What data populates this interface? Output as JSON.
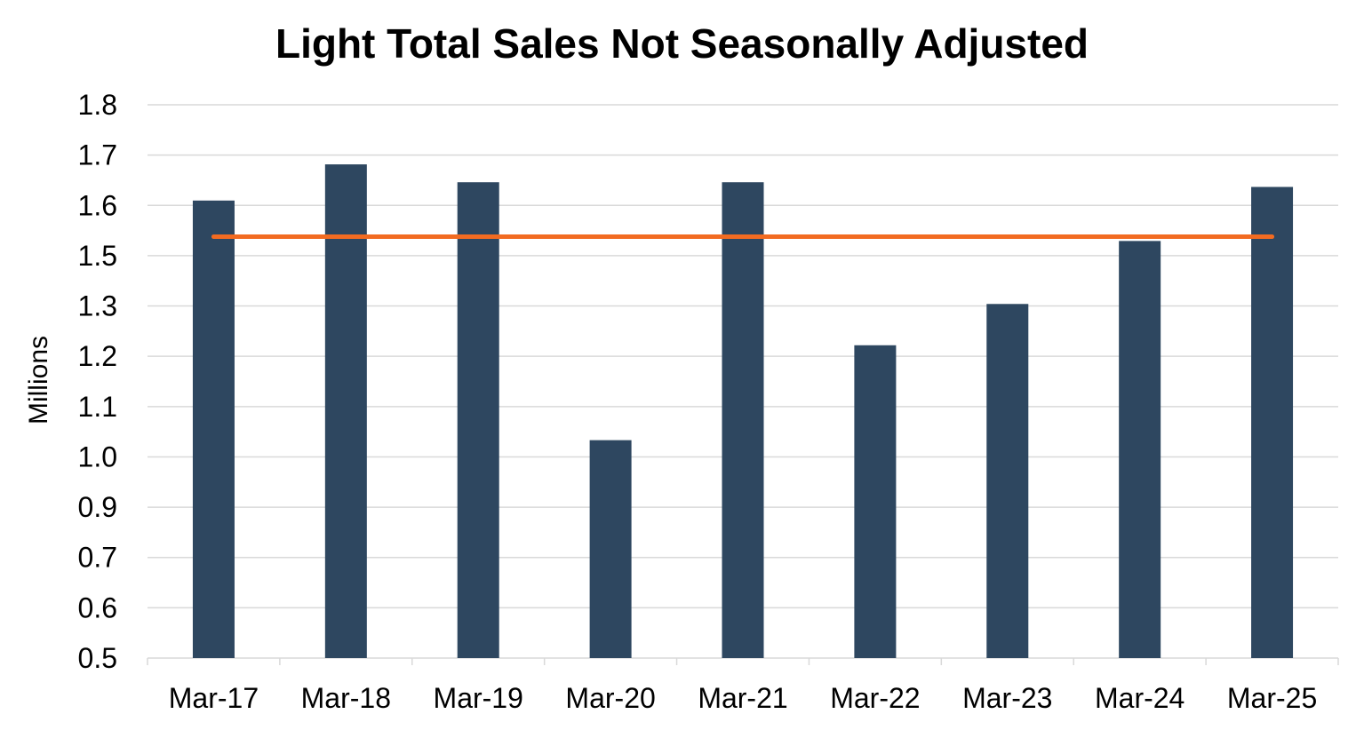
{
  "chart_data": {
    "type": "bar",
    "title": "Light Total Sales Not Seasonally Adjusted",
    "xlabel": "",
    "ylabel": "Millions",
    "categories": [
      "Mar-17",
      "Mar-18",
      "Mar-19",
      "Mar-20",
      "Mar-21",
      "Mar-22",
      "Mar-23",
      "Mar-24",
      "Mar-25"
    ],
    "y_tick_labels": [
      "0.5",
      "0.6",
      "0.7",
      "0.9",
      "1.0",
      "1.1",
      "1.2",
      "1.3",
      "1.5",
      "1.6",
      "1.7",
      "1.8"
    ],
    "series": [
      {
        "values": [
          1.575,
          1.66,
          1.618,
          1.012,
          1.618,
          1.235,
          1.332,
          1.48,
          1.607
        ],
        "color": "#2e4760"
      },
      {
        "type": "line",
        "values": [
          1.49,
          1.49,
          1.49,
          1.49,
          1.49,
          1.49,
          1.49,
          1.49,
          1.49
        ],
        "color": "#f26b21"
      }
    ],
    "ylim": [
      0.5,
      1.8
    ],
    "grid": true,
    "gridline_color": "#d9d9d9"
  }
}
